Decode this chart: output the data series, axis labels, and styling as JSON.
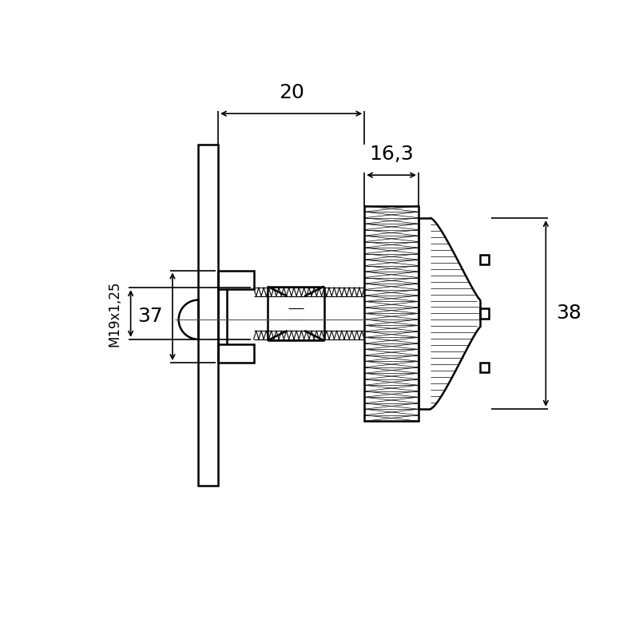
{
  "bg_color": "#ffffff",
  "line_color": "#000000",
  "lw": 1.8,
  "tlw": 0.8,
  "dlw": 1.2,
  "fig_width": 8.0,
  "fig_height": 8.0,
  "dim_20": "20",
  "dim_163": "16,3",
  "dim_37": "37",
  "dim_M19": "M19x1,25",
  "dim_38": "38"
}
